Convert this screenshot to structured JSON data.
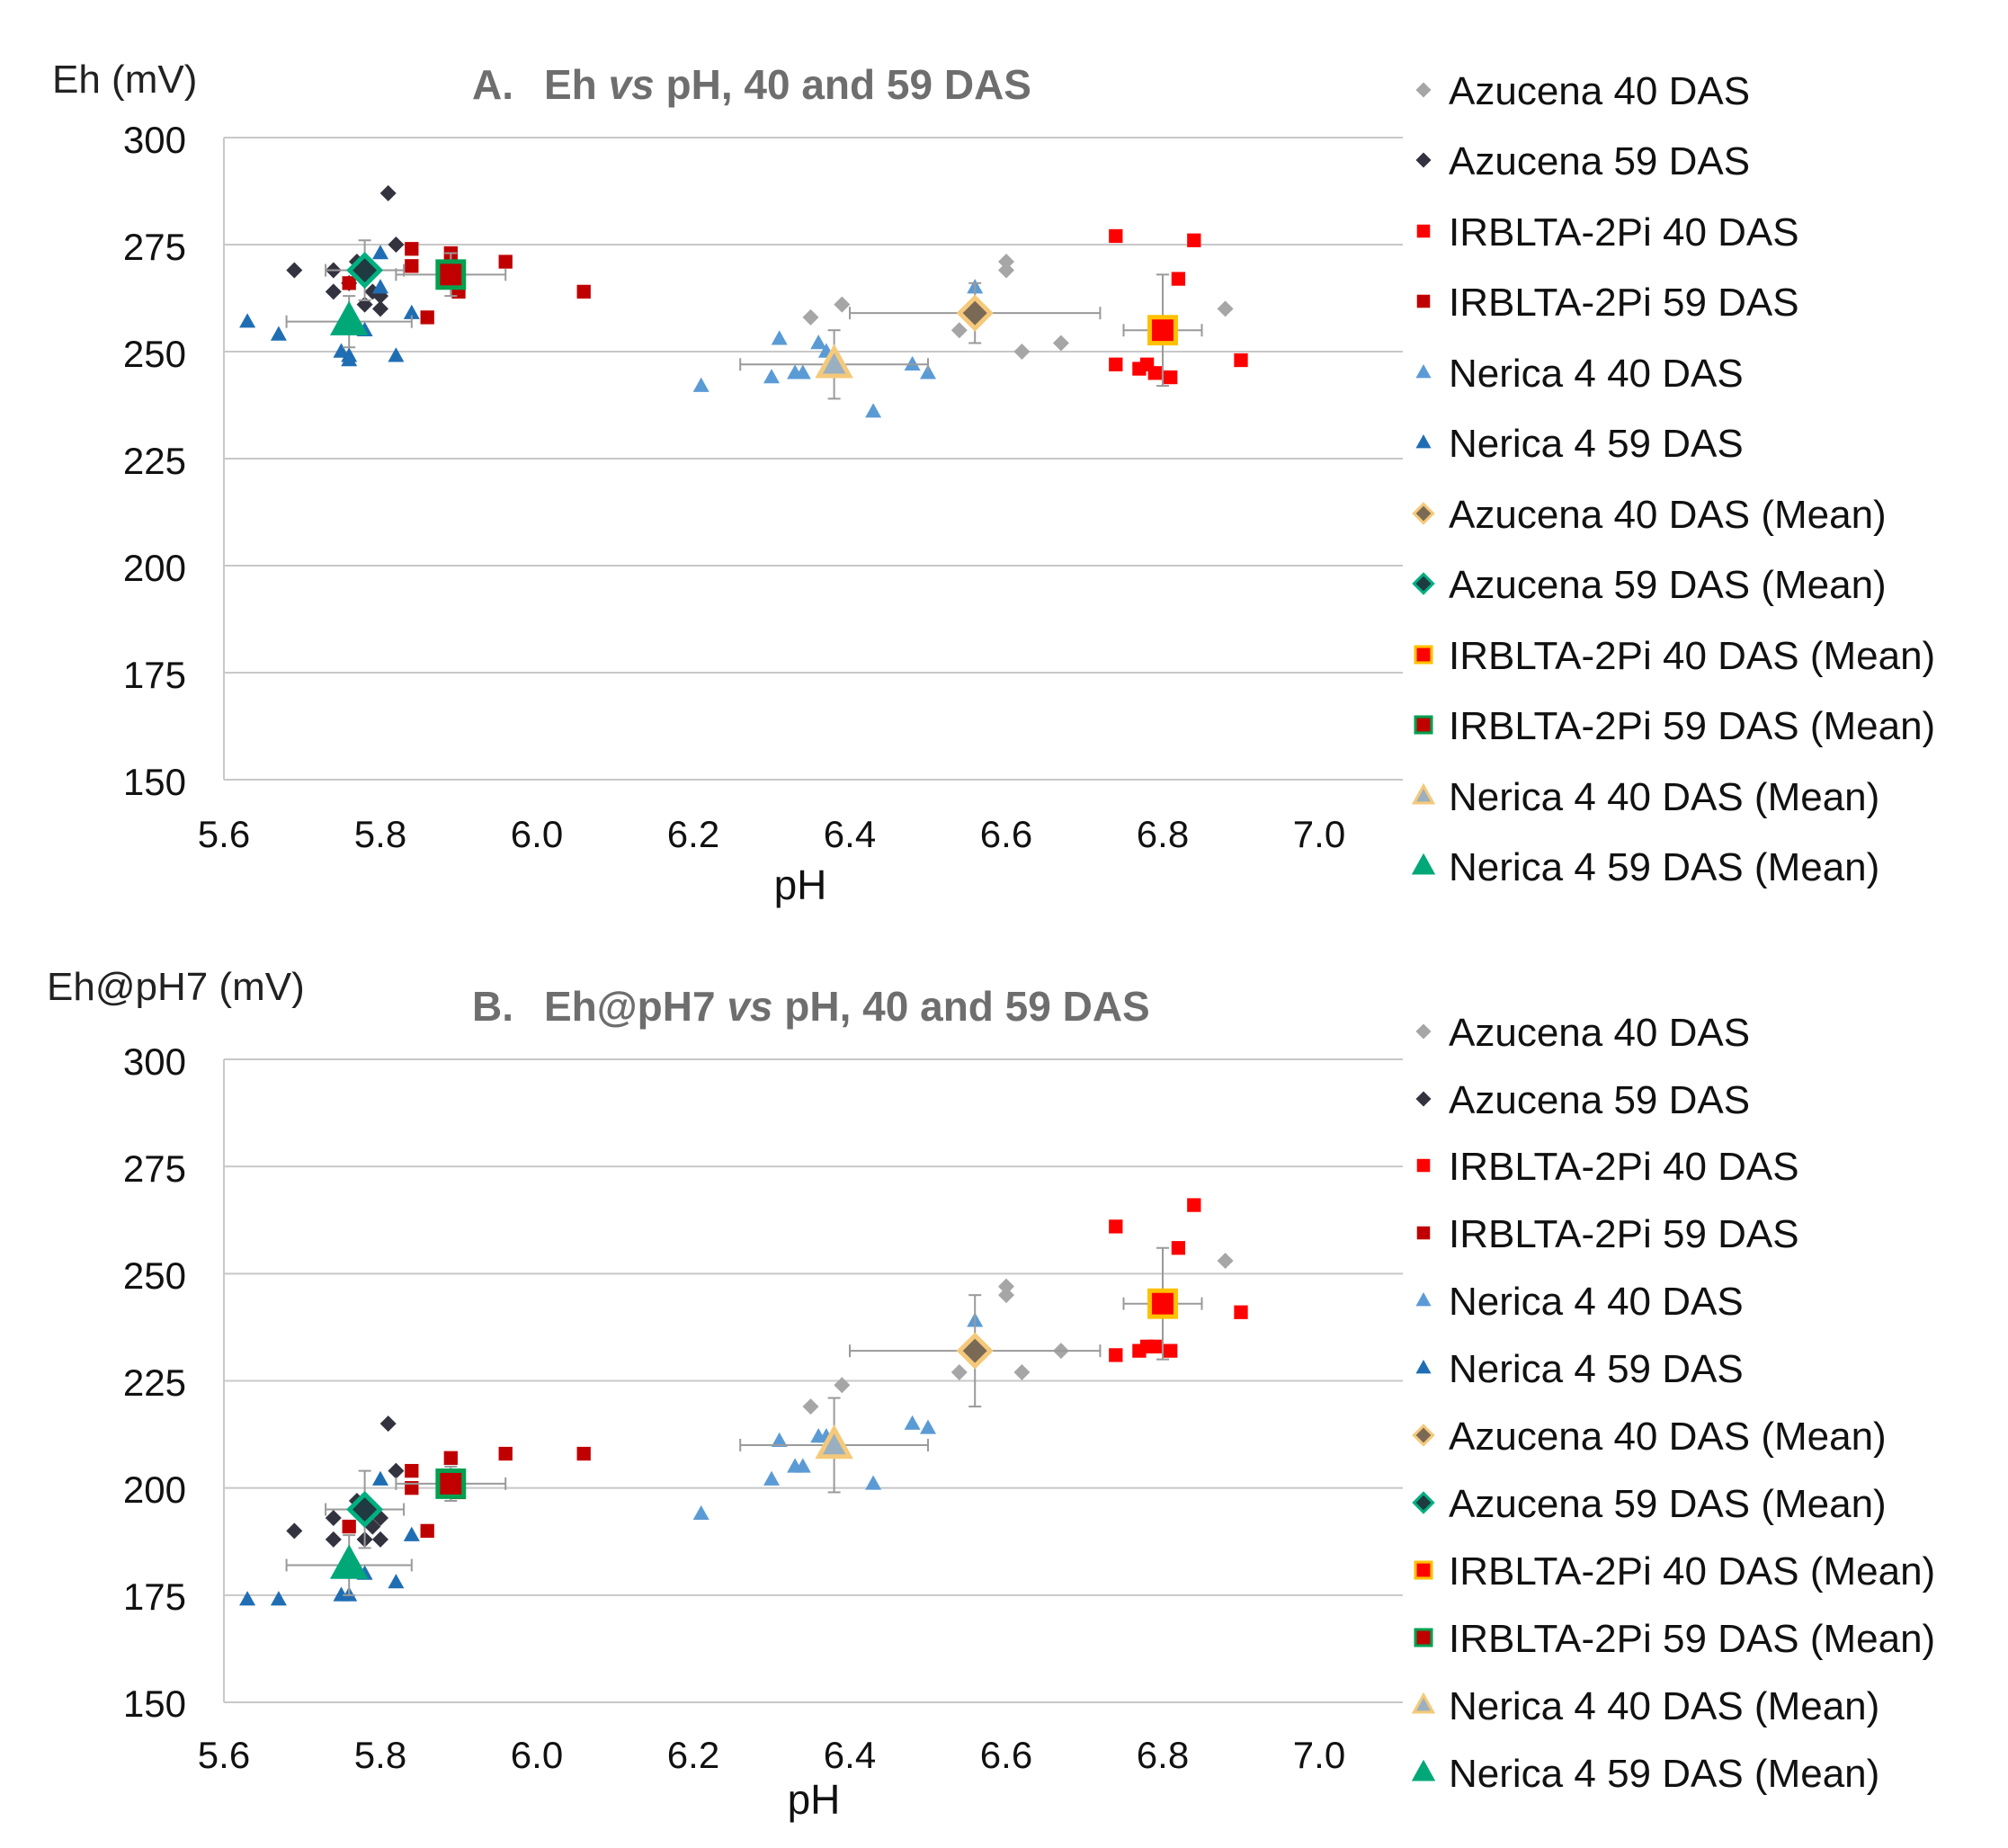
{
  "chart_data": [
    {
      "type": "scatter",
      "title_prefix": "A.",
      "title_pre": "Eh ",
      "title_vs": "vs",
      "title_post": " pH, 40 and 59 DAS",
      "ylabel": "Eh (mV)",
      "xlabel": "pH",
      "xlim": [
        5.6,
        7.1
      ],
      "ylim": [
        150,
        300
      ],
      "xticks": [
        "5.6",
        "5.8",
        "6.0",
        "6.2",
        "6.4",
        "6.6",
        "6.8",
        "7.0"
      ],
      "yticks": [
        "300",
        "275",
        "250",
        "225",
        "200",
        "175",
        "150"
      ],
      "grid": true,
      "legend_position": "right",
      "series": [
        {
          "name": "Azucena 40 DAS",
          "marker": "diamond",
          "color": "#a6a6a6",
          "x": [
            6.35,
            6.39,
            6.54,
            6.6,
            6.6,
            6.62,
            6.67,
            6.88
          ],
          "y": [
            258,
            261,
            255,
            271,
            269,
            250,
            252,
            260
          ]
        },
        {
          "name": "Azucena 59 DAS",
          "marker": "diamond",
          "color": "#333340",
          "x": [
            5.69,
            5.74,
            5.74,
            5.76,
            5.78,
            5.79,
            5.8,
            5.8,
            5.81,
            5.82,
            5.77
          ],
          "y": [
            269,
            269,
            264,
            266,
            261,
            264,
            260,
            263,
            287,
            275,
            271
          ]
        },
        {
          "name": "IRBLTA-2Pi 40 DAS",
          "marker": "square",
          "color": "#ff0000",
          "x": [
            6.74,
            6.84,
            6.82,
            6.74,
            6.77,
            6.78,
            6.79,
            6.81,
            6.9
          ],
          "y": [
            277,
            276,
            267,
            247,
            246,
            247,
            245,
            244,
            248
          ]
        },
        {
          "name": "IRBLTA-2Pi 59 DAS",
          "marker": "square",
          "color": "#c00000",
          "x": [
            5.84,
            5.84,
            5.89,
            5.9,
            5.86,
            5.96,
            6.06,
            5.76
          ],
          "y": [
            274,
            270,
            273,
            264,
            258,
            271,
            264,
            266
          ]
        },
        {
          "name": "Nerica 4 40 DAS",
          "marker": "triangle",
          "color": "#5b9bd5",
          "x": [
            6.21,
            6.3,
            6.31,
            6.33,
            6.34,
            6.36,
            6.37,
            6.43,
            6.48,
            6.5,
            6.56
          ],
          "y": [
            242,
            244,
            253,
            245,
            245,
            252,
            250,
            236,
            247,
            245,
            265
          ]
        },
        {
          "name": "Nerica 4 59 DAS",
          "marker": "triangle",
          "color": "#1f6eb4",
          "x": [
            5.63,
            5.67,
            5.75,
            5.76,
            5.78,
            5.8,
            5.82,
            5.84,
            5.8,
            5.76
          ],
          "y": [
            257,
            254,
            250,
            249,
            255,
            273,
            249,
            259,
            265,
            248
          ]
        },
        {
          "name": "Azucena 40 DAS (Mean)",
          "marker": "diamond-mean",
          "color": "#7a6a55",
          "edge": "#f5c97a",
          "x": [
            6.56
          ],
          "y": [
            259
          ],
          "xerr": [
            0.16
          ],
          "yerr": [
            7
          ]
        },
        {
          "name": "Azucena 59 DAS (Mean)",
          "marker": "diamond-mean",
          "color": "#1f3a40",
          "edge": "#00b080",
          "x": [
            5.78
          ],
          "y": [
            269
          ],
          "xerr": [
            0.05
          ],
          "yerr": [
            7
          ]
        },
        {
          "name": "IRBLTA-2Pi 40 DAS (Mean)",
          "marker": "square-mean",
          "color": "#ff0000",
          "edge": "#ffc000",
          "x": [
            6.8
          ],
          "y": [
            255
          ],
          "xerr": [
            0.05
          ],
          "yerr": [
            13
          ]
        },
        {
          "name": "IRBLTA-2Pi 59 DAS (Mean)",
          "marker": "square-mean",
          "color": "#c00000",
          "edge": "#00a050",
          "x": [
            5.89
          ],
          "y": [
            268
          ],
          "xerr": [
            0.07
          ],
          "yerr": [
            5
          ]
        },
        {
          "name": "Nerica 4 40 DAS (Mean)",
          "marker": "triangle-mean",
          "color": "#9ab0c0",
          "edge": "#f5c97a",
          "x": [
            6.38
          ],
          "y": [
            247
          ],
          "xerr": [
            0.12
          ],
          "yerr": [
            8
          ]
        },
        {
          "name": "Nerica 4 59 DAS (Mean)",
          "marker": "triangle-mean",
          "color": "#00a878",
          "edge": "#00a878",
          "x": [
            5.76
          ],
          "y": [
            257
          ],
          "xerr": [
            0.08
          ],
          "yerr": [
            6
          ]
        }
      ]
    },
    {
      "type": "scatter",
      "title_prefix": "B.",
      "title_pre": "Eh@pH7 ",
      "title_vs": "vs",
      "title_post": " pH, 40 and 59 DAS",
      "ylabel": "Eh@pH7 (mV)",
      "xlabel": "pH",
      "xlim": [
        5.6,
        7.1
      ],
      "ylim": [
        150,
        300
      ],
      "xticks": [
        "5.6",
        "5.8",
        "6.0",
        "6.2",
        "6.4",
        "6.6",
        "6.8",
        "7.0"
      ],
      "yticks": [
        "300",
        "275",
        "250",
        "225",
        "200",
        "175",
        "150"
      ],
      "grid": true,
      "legend_position": "right",
      "series": [
        {
          "name": "Azucena 40 DAS",
          "marker": "diamond",
          "color": "#a6a6a6",
          "x": [
            6.35,
            6.39,
            6.54,
            6.6,
            6.6,
            6.62,
            6.67,
            6.88
          ],
          "y": [
            219,
            224,
            227,
            247,
            245,
            227,
            232,
            253
          ]
        },
        {
          "name": "Azucena 59 DAS",
          "marker": "diamond",
          "color": "#333340",
          "x": [
            5.69,
            5.74,
            5.74,
            5.78,
            5.79,
            5.8,
            5.8,
            5.81,
            5.82,
            5.77
          ],
          "y": [
            190,
            193,
            188,
            188,
            191,
            188,
            193,
            215,
            204,
            197
          ]
        },
        {
          "name": "IRBLTA-2Pi 40 DAS",
          "marker": "square",
          "color": "#ff0000",
          "x": [
            6.74,
            6.84,
            6.82,
            6.74,
            6.77,
            6.78,
            6.79,
            6.81,
            6.9
          ],
          "y": [
            261,
            266,
            256,
            231,
            232,
            233,
            233,
            232,
            241
          ]
        },
        {
          "name": "IRBLTA-2Pi 59 DAS",
          "marker": "square",
          "color": "#c00000",
          "x": [
            5.84,
            5.84,
            5.89,
            5.9,
            5.86,
            5.96,
            6.06,
            5.76
          ],
          "y": [
            204,
            200,
            207,
            199,
            190,
            208,
            208,
            191
          ]
        },
        {
          "name": "Nerica 4 40 DAS",
          "marker": "triangle",
          "color": "#5b9bd5",
          "x": [
            6.21,
            6.3,
            6.31,
            6.33,
            6.34,
            6.36,
            6.37,
            6.43,
            6.48,
            6.5,
            6.56
          ],
          "y": [
            194,
            202,
            211,
            205,
            205,
            212,
            212,
            201,
            215,
            214,
            239
          ]
        },
        {
          "name": "Nerica 4 59 DAS",
          "marker": "triangle",
          "color": "#1f6eb4",
          "x": [
            5.63,
            5.67,
            5.75,
            5.76,
            5.78,
            5.8,
            5.82,
            5.84
          ],
          "y": [
            174,
            174,
            175,
            175,
            180,
            202,
            178,
            189
          ]
        },
        {
          "name": "Azucena 40 DAS (Mean)",
          "marker": "diamond-mean",
          "color": "#7a6a55",
          "edge": "#f5c97a",
          "x": [
            6.56
          ],
          "y": [
            232
          ],
          "xerr": [
            0.16
          ],
          "yerr": [
            13
          ]
        },
        {
          "name": "Azucena 59 DAS (Mean)",
          "marker": "diamond-mean",
          "color": "#1f3a40",
          "edge": "#00b080",
          "x": [
            5.78
          ],
          "y": [
            195
          ],
          "xerr": [
            0.05
          ],
          "yerr": [
            9
          ]
        },
        {
          "name": "IRBLTA-2Pi 40 DAS (Mean)",
          "marker": "square-mean",
          "color": "#ff0000",
          "edge": "#ffc000",
          "x": [
            6.8
          ],
          "y": [
            243
          ],
          "xerr": [
            0.05
          ],
          "yerr": [
            13
          ]
        },
        {
          "name": "IRBLTA-2Pi 59 DAS (Mean)",
          "marker": "square-mean",
          "color": "#c00000",
          "edge": "#00a050",
          "x": [
            5.89
          ],
          "y": [
            201
          ],
          "xerr": [
            0.07
          ],
          "yerr": [
            4
          ]
        },
        {
          "name": "Nerica 4 40 DAS (Mean)",
          "marker": "triangle-mean",
          "color": "#9ab0c0",
          "edge": "#f5c97a",
          "x": [
            6.38
          ],
          "y": [
            210
          ],
          "xerr": [
            0.12
          ],
          "yerr": [
            11
          ]
        },
        {
          "name": "Nerica 4 59 DAS (Mean)",
          "marker": "triangle-mean",
          "color": "#00a878",
          "edge": "#00a878",
          "x": [
            5.76
          ],
          "y": [
            182
          ],
          "xerr": [
            0.08
          ],
          "yerr": [
            7
          ]
        }
      ]
    }
  ]
}
